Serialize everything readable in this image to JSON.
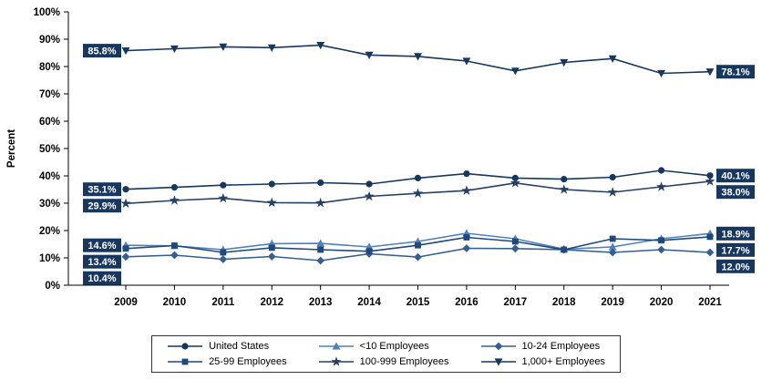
{
  "chart_data": {
    "type": "line",
    "title": "",
    "xlabel": "",
    "ylabel": "Percent",
    "ylim": [
      0,
      100
    ],
    "ytick_step": 10,
    "yticks": [
      "0%",
      "10%",
      "20%",
      "30%",
      "40%",
      "50%",
      "60%",
      "70%",
      "80%",
      "90%",
      "100%"
    ],
    "grid": false,
    "legend_position": "bottom",
    "label_box_color": "#17375E",
    "label_text_color": "#FFFFFF",
    "categories": [
      "2009",
      "2010",
      "2011",
      "2012",
      "2013",
      "2014",
      "2015",
      "2016",
      "2017",
      "2018",
      "2019",
      "2020",
      "2021"
    ],
    "series": [
      {
        "name": "United States",
        "marker": "circle",
        "color": "#17375E",
        "values": [
          35.1,
          35.8,
          36.6,
          37.0,
          37.5,
          37.0,
          39.2,
          40.8,
          39.2,
          38.8,
          39.5,
          42.0,
          40.1
        ],
        "label_start": "35.1%",
        "label_end": "40.1%"
      },
      {
        "name": "<10 Employees",
        "marker": "triangle-up",
        "color": "#4F81BD",
        "values": [
          14.6,
          14.4,
          13.0,
          15.2,
          15.3,
          14.0,
          16.0,
          19.0,
          17.0,
          13.2,
          14.0,
          17.0,
          18.9
        ],
        "label_start": "14.6%",
        "label_end": "18.9%"
      },
      {
        "name": "10-24 Employees",
        "marker": "diamond",
        "color": "#365F91",
        "values": [
          10.4,
          11.0,
          9.5,
          10.5,
          9.0,
          11.5,
          10.3,
          13.5,
          13.4,
          13.0,
          12.0,
          13.0,
          12.0
        ],
        "label_start": "10.4%",
        "label_end": "12.0%"
      },
      {
        "name": "25-99 Employees",
        "marker": "square",
        "color": "#1F497D",
        "values": [
          13.4,
          14.5,
          12.0,
          13.7,
          13.0,
          12.4,
          14.6,
          17.5,
          16.0,
          13.0,
          17.0,
          16.4,
          17.7
        ],
        "label_start": "13.4%",
        "label_end": "17.7%"
      },
      {
        "name": "100-999 Employees",
        "marker": "star",
        "color": "#254061",
        "values": [
          29.9,
          31.0,
          31.8,
          30.2,
          30.1,
          32.5,
          33.6,
          34.6,
          37.4,
          35.0,
          34.0,
          36.0,
          38.0
        ],
        "label_start": "29.9%",
        "label_end": "38.0%"
      },
      {
        "name": "1,000+ Employees",
        "marker": "triangle-down",
        "color": "#17375E",
        "values": [
          85.8,
          86.5,
          87.2,
          86.9,
          87.8,
          84.2,
          83.7,
          82.0,
          78.4,
          81.5,
          82.9,
          77.5,
          78.1
        ],
        "label_start": "85.8%",
        "label_end": "78.1%"
      }
    ]
  }
}
